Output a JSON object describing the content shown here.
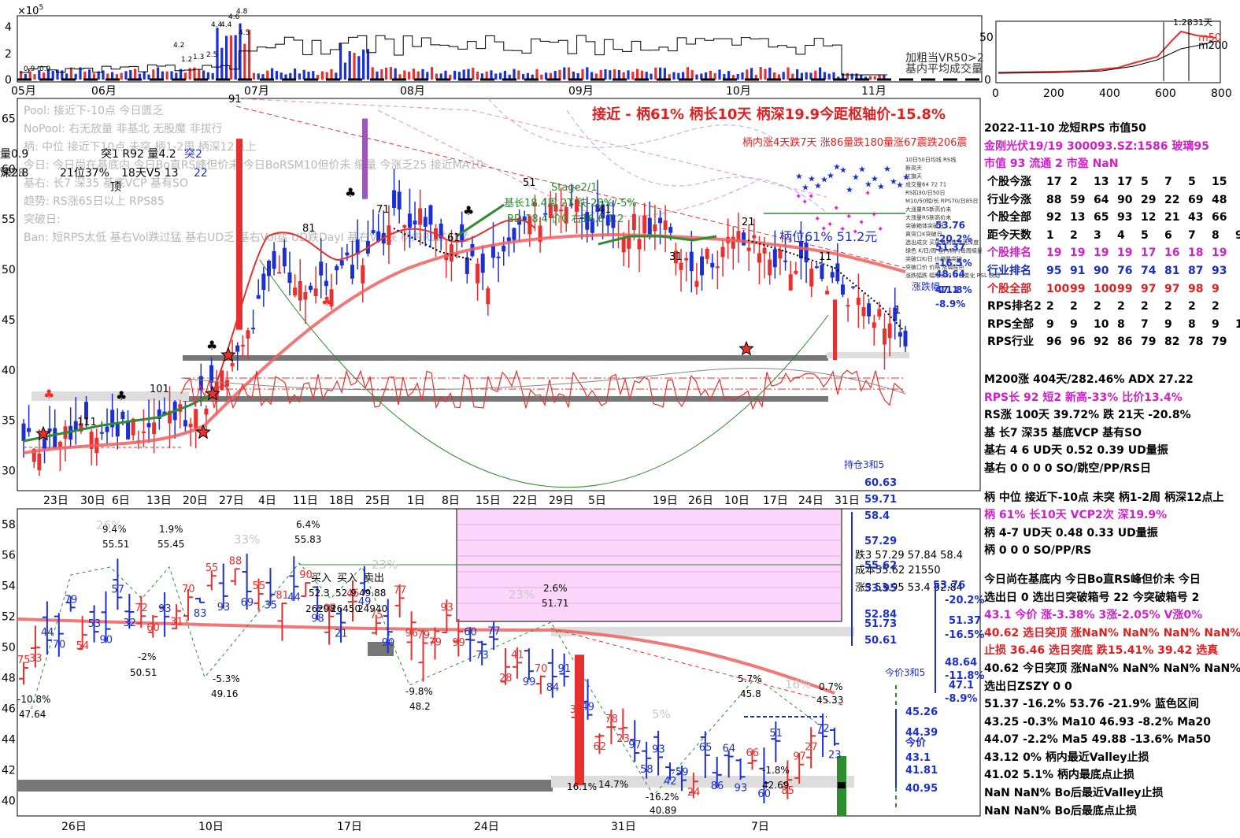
{
  "header": {
    "title_line": "接近 - 柄61% 柄长10天 柄深19.9今距枢轴价-15.8%",
    "date_line": "2022-11-10 龙短RPS 市值50",
    "stock_line": "金刚光伏19/19 300093.SZ:1586 玻璃95",
    "cap_line": "市值 93  流通 2 市盈 NaN",
    "handle_rise": "柄内涨4天跌7天 涨86量跌180量涨67震跌206震"
  },
  "volume_chart": {
    "exponent": "×10",
    "exp_sup": "5",
    "y_ticks": [
      "4",
      "2",
      "0"
    ],
    "months": [
      "05月",
      "06月",
      "07月",
      "08月",
      "09月",
      "10月",
      "11月"
    ],
    "bar_labels": [
      "4.2",
      "4.4",
      "4.4",
      "4.6",
      "4.8",
      "4.5",
      "1.2",
      "1.3",
      "2.5",
      "0.9",
      "0.9"
    ],
    "legend1": "加粗当VR50>2",
    "legend2": "基内平均成交量"
  },
  "mini_chart": {
    "y_ticks": [
      "50",
      "0"
    ],
    "x_ticks": [
      "0",
      "200",
      "400",
      "600",
      "800"
    ],
    "labels": [
      "m50",
      "m200",
      "1:28",
      "31天"
    ]
  },
  "main_chart": {
    "y_ticks": [
      "65",
      "60",
      "55",
      "50",
      "45",
      "40",
      "35",
      "30"
    ],
    "x_ticks": [
      "23日",
      "30日",
      "6日",
      "13日",
      "20日",
      "27日",
      "4日",
      "11日",
      "18日",
      "25日",
      "1日",
      "8日",
      "15日",
      "22日",
      "29日",
      "5日",
      "19日",
      "26日",
      "10日",
      "17日",
      "24日",
      "31日"
    ],
    "left_notes": [
      "Pool: 接近下-10点 今日匮乏",
      "NoPool: 右无放量 非基北 无股魔 非拔行",
      "柄: 中位 接近下10点 未突 柄1-2周 柄深12点上",
      "今日: 今日尚在基底内 今日Bo直RS峰但价未 今日BoRSM10但价未 缩量 今涨乏25 接近MA10",
      "基右: 长7 深35 基底VCP 基有SO",
      "趋势: RS涨65日以上 RPS85",
      "突破日:",
      "Ban: 短RPS太低 基右Vol跌过猛 基右UD乏 基右Vol猛 UD跌DayI 基右Vol跌 柄内RL跌过猛"
    ],
    "left_vals": [
      "量0.9",
      "深2.8",
      "V2.8"
    ],
    "top_labels": [
      "突1 R92 量4.2",
      "突2",
      "21位37%",
      "18天V5 13",
      "22",
      "顶"
    ],
    "annotations": [
      "91",
      "81",
      "71",
      "51",
      "61",
      "41",
      "31",
      "21",
      "11",
      "111",
      "101",
      "1",
      "Stage2/1",
      "基长18.4周 2T 跌-28%/-5%",
      "BD 18.4 价0 右16.6 1.2",
      "柄位61%  51.2元"
    ],
    "right_levels": [
      "53.76",
      "-20.2%",
      "51.37",
      "-16.5%",
      "48.64",
      "-11.8%",
      "47.1",
      "-8.9%"
    ],
    "right_small": [
      "10日50日均线 RS线",
      "新高天",
      "扛旗天",
      "成交量64 72 71",
      "RS扣30/日50日",
      "M10/50短/长 RPS70/日85日",
      "大涨量RS新高价未",
      "大涨量RS新高价未",
      "突破箱体突破日",
      "真突口K突破日",
      "选出成交 买放量箱体跌落深度",
      "绿色 K/日/周 基内柄内每周缩量",
      "突破口K/日 价缩量突破",
      "突破口价 价格 涨幅底色",
      "涨跌幅跌 幅增长的 排名变化 RSL 跌趋"
    ],
    "holdings": "持仓3和5",
    "price_top": "60.63",
    "price_mid": "59.71",
    "zhang_die": "涨跌幅"
  },
  "lower_chart": {
    "y_ticks": [
      "58",
      "56",
      "54",
      "52",
      "50",
      "48",
      "46",
      "44",
      "42",
      "40"
    ],
    "x_ticks": [
      "26日",
      "10日",
      "17日",
      "24日",
      "31日",
      "7日"
    ],
    "pct_labels": [
      "9.4%",
      "55.51",
      "1.9%",
      "55.45",
      "6.4%",
      "55.83",
      "-2%",
      "50.51",
      "-5.3%",
      "49.16",
      "-10.8%",
      "47.64",
      "-9.8%",
      "48.2",
      "2.6%",
      "51.71",
      "5.7%",
      "45.8",
      "0.7%",
      "45.33",
      "-1.8%",
      "42.69",
      "-16.2%",
      "40.89",
      "16.1%",
      "14.7%"
    ],
    "faint": [
      "26%",
      "33%",
      "23%",
      "23%",
      "5%",
      "16%"
    ],
    "buy_sell": [
      "买入",
      "买入",
      "卖出"
    ],
    "trade_vals": [
      "52.3",
      "52.9",
      "49.88",
      "26298",
      "26450",
      "24940"
    ],
    "right_stats": [
      "跌3 57.29 57.84 58.4",
      "成本55.62 21550",
      "涨3 53.95 53.4 52.84"
    ],
    "right_levels": [
      "58.4",
      "57.29",
      "55.62",
      "53.95",
      "52.84",
      "51.73",
      "50.61",
      "53.76",
      "-20.2%",
      "51.37",
      "-16.5%",
      "48.64",
      "-11.8%",
      "47.1",
      "-8.9%",
      "45.26",
      "44.39",
      "今价",
      "43.1",
      "41.81",
      "40.95"
    ],
    "now_label": "今价3和5"
  },
  "stats_table": {
    "headers": [
      "个股今涨",
      "行业今涨",
      "个股全部",
      "距今天数",
      "个股排名",
      "行业排名",
      "个股全部",
      "RPS排名2",
      "RPS全部",
      "RPS行业"
    ],
    "rows": [
      [
        "17",
        "2",
        "13",
        "17",
        "5",
        "7",
        "5",
        "15"
      ],
      [
        "88",
        "59",
        "64",
        "90",
        "29",
        "22",
        "69",
        "48"
      ],
      [
        "92",
        "13",
        "65",
        "93",
        "12",
        "21",
        "43",
        "66"
      ],
      [
        "1",
        "2",
        "3",
        "4",
        "5",
        "6",
        "7",
        "8",
        "9"
      ],
      [
        "19",
        "19",
        "19",
        "19",
        "17",
        "16",
        "18",
        "19"
      ],
      [
        "95",
        "91",
        "90",
        "76",
        "74",
        "81",
        "87",
        "93"
      ],
      [
        "100",
        "99",
        "100",
        "99",
        "97",
        "97",
        "98",
        "9"
      ],
      [
        "2",
        "2",
        "2",
        "2",
        "2",
        "2",
        "2",
        "2"
      ],
      [
        "9",
        "9",
        "10",
        "8",
        "7",
        "9",
        "8",
        "9",
        "10"
      ],
      [
        "96",
        "96",
        "92",
        "86",
        "79",
        "82",
        "78",
        "79"
      ]
    ]
  },
  "info_lines": [
    "M200涨 404天/282.46%  ADX 27.22",
    "RPS长 92 短2  新高-33%  比价13.4%",
    "RS涨 100天 39.72% 跌 21天 -20.8%",
    "基 长7 深35 基底VCP 基有SO",
    "基右 4 6 UD天 0.52 0.39 UD量振",
    "基右 0 0 0 0 SO/跳空/PP/RS日",
    "柄 中位 接近下-10点 未突 柄1-2周 柄深12点上",
    "柄 61% 长10天  VCP2次 深19.9%",
    "柄 4-7 UD天 0.48 0.33 UD量振",
    "柄 0 0 0 SO/PP/RS",
    "今日尚在基底内 今日Bo直RS峰但价未 今日",
    "选出日 0 选出日突破箱号 22 今突破箱号 2",
    "43.1 今价  涨-3.38% 3涨-2.05% V涨0%",
    "40.62 选日突顶 涨NaN%     NaN% NaN% NaN%",
    "止损 36.46 选日突底 跌15.41% 39.42 选真",
    "40.62 今日突顶 涨NaN%    NaN% NaN% NaN%",
    "选出日ZSZY 0 0",
    "51.37 -16.2% 53.76 -21.9% 蓝色区间",
    "  43.25 -0.3% Ma10   46.93 -8.2% Ma20",
    "  44.07 -2.2% Ma5    49.88 -13.6% Ma50",
    "43.12 0%  柄内最近Valley止损",
    "41.02 5.1%  柄内最底点止损",
    "NaN NaN% Bo后最近Valley止损",
    "NaN NaN% Bo后最底点止损"
  ],
  "chart_data": [
    {
      "type": "bar",
      "title": "",
      "ylabel": "",
      "ylim": [
        0,
        5
      ],
      "categories": [
        "05月",
        "06月",
        "07月",
        "08月",
        "09月",
        "10月",
        "11月"
      ],
      "values": [
        0.9,
        0.8,
        4.6,
        1.6,
        1.8,
        1.2,
        0.8
      ]
    },
    {
      "type": "line",
      "title": "",
      "xlabel": "",
      "ylabel": "",
      "ylim": [
        28,
        67
      ],
      "categories": [
        "23日",
        "30日",
        "6日",
        "13日",
        "20日",
        "27日",
        "4日",
        "11日",
        "18日",
        "25日",
        "1日",
        "8日",
        "15日",
        "22日",
        "29日",
        "5日",
        "19日",
        "26日",
        "10日",
        "17日",
        "24日",
        "31日"
      ],
      "series": [
        {
          "name": "",
          "values": [
            32.5,
            33.5,
            34,
            34.5,
            36,
            40,
            50,
            48,
            51,
            56,
            53,
            49,
            55,
            57,
            53,
            55,
            50,
            53,
            51,
            49,
            47,
            43.1
          ]
        }
      ]
    },
    {
      "type": "line",
      "title": "",
      "ylim": [
        39,
        59
      ],
      "categories": [
        "26日",
        "10日",
        "17日",
        "24日",
        "31日",
        "7日"
      ],
      "series": [
        {
          "name": "",
          "values": [
            50,
            54,
            53,
            50,
            42,
            43.1
          ]
        }
      ]
    }
  ]
}
